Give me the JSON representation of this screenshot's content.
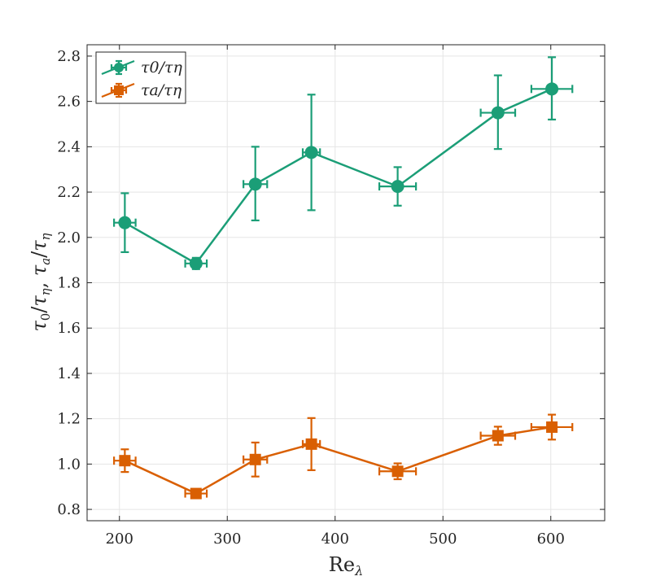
{
  "chart_data": {
    "type": "line",
    "title": "",
    "xlabel": "Re_λ",
    "ylabel": "τ0/τη, τa/τη",
    "xlim": [
      170,
      650
    ],
    "ylim": [
      0.75,
      2.85
    ],
    "xticks": [
      200,
      300,
      400,
      500,
      600
    ],
    "xtick_labels": [
      "200",
      "300",
      "400",
      "500",
      "600"
    ],
    "yticks": [
      0.8,
      1.0,
      1.2,
      1.4,
      1.6,
      1.8,
      2.0,
      2.2,
      2.4,
      2.6,
      2.8
    ],
    "ytick_labels": [
      "0.8",
      "1.0",
      "1.2",
      "1.4",
      "1.6",
      "1.8",
      "2.0",
      "2.2",
      "2.4",
      "2.6",
      "2.8"
    ],
    "grid": true,
    "legend_position": "top-left",
    "series": [
      {
        "name": "τ0/τη",
        "color": "#1b9e77",
        "marker": "circle",
        "x": [
          205,
          271,
          326,
          378,
          458,
          551,
          601
        ],
        "y": [
          2.065,
          1.885,
          2.235,
          2.375,
          2.225,
          2.55,
          2.655
        ],
        "xerr": [
          10,
          10,
          11,
          8,
          17,
          16,
          19
        ],
        "yerr_low": [
          0.13,
          0.025,
          0.16,
          0.255,
          0.085,
          0.16,
          0.135
        ],
        "yerr_high": [
          0.13,
          0.025,
          0.165,
          0.255,
          0.085,
          0.165,
          0.14
        ]
      },
      {
        "name": "τa/τη",
        "color": "#d95f02",
        "marker": "square",
        "x": [
          205,
          271,
          326,
          378,
          458,
          551,
          601
        ],
        "y": [
          1.015,
          0.87,
          1.02,
          1.088,
          0.968,
          1.125,
          1.163
        ],
        "xerr": [
          10,
          10,
          11,
          8,
          17,
          16,
          19
        ],
        "yerr_low": [
          0.05,
          0.01,
          0.075,
          0.115,
          0.035,
          0.04,
          0.055
        ],
        "yerr_high": [
          0.05,
          0.01,
          0.075,
          0.115,
          0.035,
          0.04,
          0.055
        ]
      }
    ]
  }
}
